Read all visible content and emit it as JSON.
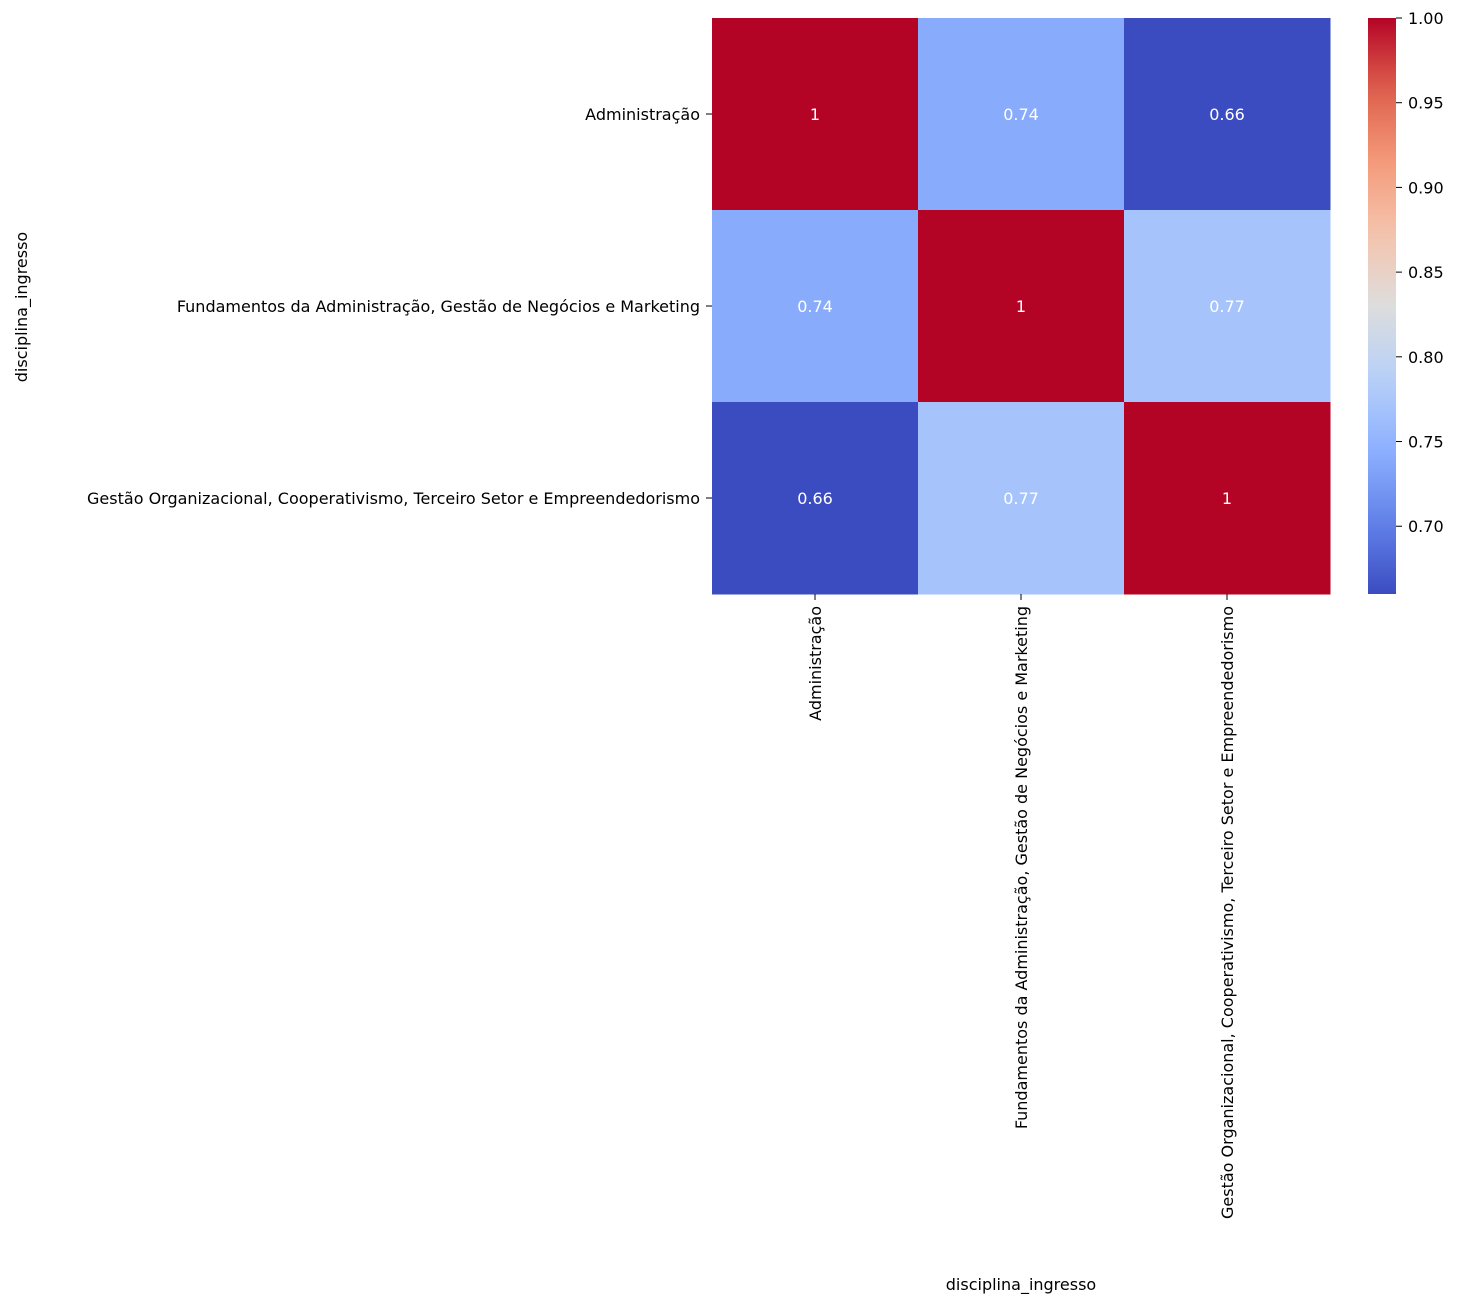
{
  "chart_data": {
    "type": "heatmap",
    "title": "",
    "xlabel": "disciplina_ingresso",
    "ylabel": "disciplina_ingresso",
    "categories": [
      "Administração",
      "Fundamentos da Administração, Gestão de Negócios e Marketing",
      "Gestão Organizacional, Cooperativismo, Terceiro Setor e Empreendedorismo"
    ],
    "values": [
      [
        1.0,
        0.74,
        0.66
      ],
      [
        0.74,
        1.0,
        0.77
      ],
      [
        0.66,
        0.77,
        1.0
      ]
    ],
    "cell_labels": [
      [
        "1",
        "0.74",
        "0.66"
      ],
      [
        "0.74",
        "1",
        "0.77"
      ],
      [
        "0.66",
        "0.77",
        "1"
      ]
    ],
    "colormap": "coolwarm",
    "colorbar": {
      "min": 0.66,
      "max": 1.0,
      "ticks": [
        0.7,
        0.75,
        0.8,
        0.85,
        0.9,
        0.95,
        1.0
      ],
      "tick_labels": [
        "0.70",
        "0.75",
        "0.80",
        "0.85",
        "0.90",
        "0.95",
        "1.00"
      ]
    },
    "colors": {
      "low": "#3b4cc0",
      "mid": "#dddddd",
      "high": "#b40426"
    }
  }
}
